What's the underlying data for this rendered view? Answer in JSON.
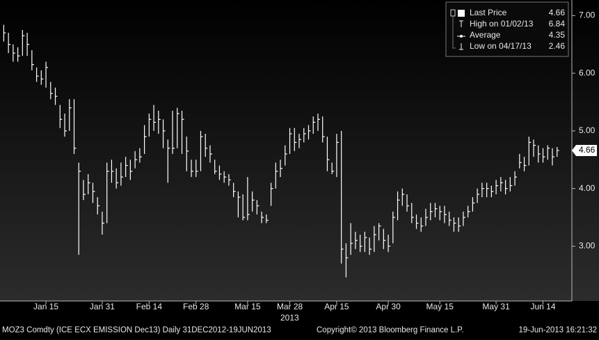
{
  "chart_data": {
    "type": "hlc",
    "footer_left": "MOZ3 Comdty (ICE ECX EMISSION  Dec13)  Daily 31DEC2012-19JUN2013",
    "footer_center": "Copyright© 2013 Bloomberg Finance L.P.",
    "footer_right": "19-Jun-2013 16:21:32",
    "x_year_label": "2013",
    "legend": [
      {
        "name": "Last Price",
        "value": 4.66
      },
      {
        "name": "High on 01/02/13",
        "value": 6.84
      },
      {
        "name": "Average",
        "value": 4.35
      },
      {
        "name": "Low on 04/17/13",
        "value": 2.46
      }
    ],
    "last_price": 4.66,
    "color": "#ffffff",
    "ylim": [
      2.05,
      7.27
    ],
    "yticks": [
      {
        "value": 3,
        "label": "3.00"
      },
      {
        "value": 4,
        "label": "4.00"
      },
      {
        "value": 5,
        "label": "5.00"
      },
      {
        "value": 6,
        "label": "6.00"
      },
      {
        "value": 7,
        "label": "7.00"
      }
    ],
    "categories": [
      null,
      null,
      null,
      null,
      null,
      null,
      null,
      null,
      null,
      "Jan 15",
      null,
      null,
      null,
      null,
      null,
      null,
      null,
      null,
      null,
      null,
      null,
      "Jan 31",
      null,
      null,
      null,
      null,
      null,
      null,
      null,
      null,
      null,
      "Feb 14",
      null,
      null,
      null,
      null,
      null,
      null,
      null,
      null,
      null,
      "Feb 28",
      null,
      null,
      null,
      null,
      null,
      null,
      null,
      null,
      null,
      null,
      "Mar 15",
      null,
      null,
      null,
      null,
      null,
      null,
      null,
      null,
      "Mar 28",
      null,
      null,
      null,
      null,
      null,
      null,
      null,
      null,
      null,
      "Apr 15",
      null,
      null,
      null,
      null,
      null,
      null,
      null,
      null,
      null,
      null,
      "Apr 30",
      null,
      null,
      null,
      null,
      null,
      null,
      null,
      null,
      null,
      null,
      "May 15",
      null,
      null,
      null,
      null,
      null,
      null,
      null,
      null,
      null,
      null,
      null,
      "May 31",
      null,
      null,
      null,
      null,
      null,
      null,
      null,
      null,
      null,
      "Jun 14",
      null,
      null,
      null
    ],
    "high": [
      6.84,
      6.7,
      6.5,
      6.45,
      6.75,
      6.7,
      6.4,
      6.1,
      6.05,
      6.2,
      5.85,
      5.75,
      5.45,
      5.3,
      5.55,
      5.55,
      4.45,
      4.15,
      4.25,
      4.1,
      3.85,
      3.6,
      4.45,
      4.5,
      4.35,
      4.45,
      4.55,
      4.5,
      4.65,
      4.7,
      5.1,
      5.3,
      5.45,
      5.35,
      5.2,
      4.85,
      5.35,
      5.4,
      5.35,
      4.9,
      4.5,
      4.5,
      5.0,
      4.95,
      4.75,
      4.5,
      4.4,
      4.3,
      4.25,
      4.1,
      3.95,
      3.9,
      4.2,
      3.95,
      3.8,
      3.6,
      3.55,
      4.1,
      4.45,
      4.5,
      4.75,
      5.05,
      5.05,
      4.95,
      5.05,
      5.1,
      5.25,
      5.3,
      5.25,
      4.9,
      4.45,
      4.95,
      5.0,
      3.05,
      3.4,
      3.25,
      3.2,
      3.25,
      3.15,
      3.35,
      3.4,
      3.3,
      3.2,
      3.6,
      3.95,
      4.0,
      3.9,
      3.75,
      3.55,
      3.5,
      3.65,
      3.75,
      3.75,
      3.7,
      3.7,
      3.6,
      3.5,
      3.5,
      3.6,
      3.7,
      3.85,
      4.0,
      4.1,
      4.1,
      4.05,
      4.15,
      4.2,
      4.15,
      4.2,
      4.3,
      4.6,
      4.55,
      4.9,
      4.85,
      4.75,
      4.7,
      4.75,
      4.7,
      4.72
    ],
    "low": [
      6.55,
      6.35,
      6.2,
      6.2,
      6.3,
      6.3,
      6.05,
      5.85,
      5.8,
      5.75,
      5.55,
      5.45,
      5.05,
      4.9,
      5.0,
      4.6,
      2.85,
      3.8,
      3.9,
      3.75,
      3.55,
      3.2,
      3.4,
      4.1,
      4.0,
      4.05,
      4.2,
      4.15,
      4.35,
      4.45,
      4.6,
      4.9,
      5.0,
      4.95,
      4.7,
      4.1,
      4.6,
      4.7,
      4.6,
      4.3,
      4.2,
      4.2,
      4.3,
      4.55,
      4.45,
      4.25,
      4.15,
      4.1,
      4.05,
      3.85,
      3.5,
      3.45,
      3.45,
      3.6,
      3.55,
      3.4,
      3.4,
      3.7,
      4.0,
      4.2,
      4.4,
      4.6,
      4.65,
      4.7,
      4.8,
      4.85,
      4.95,
      5.0,
      4.8,
      4.3,
      4.25,
      4.2,
      2.7,
      2.46,
      2.85,
      2.95,
      2.9,
      2.9,
      2.85,
      2.9,
      3.1,
      2.95,
      2.9,
      3.05,
      3.45,
      3.7,
      3.6,
      3.4,
      3.3,
      3.25,
      3.35,
      3.45,
      3.5,
      3.45,
      3.4,
      3.35,
      3.25,
      3.25,
      3.35,
      3.5,
      3.6,
      3.75,
      3.85,
      3.85,
      3.85,
      3.9,
      3.95,
      3.9,
      3.95,
      4.05,
      4.35,
      4.3,
      4.4,
      4.55,
      4.45,
      4.45,
      4.5,
      4.4,
      4.55
    ],
    "close": [
      6.7,
      6.5,
      6.35,
      6.3,
      6.65,
      6.5,
      6.15,
      5.95,
      5.9,
      6.1,
      5.65,
      5.6,
      5.2,
      5.0,
      5.4,
      4.7,
      4.3,
      3.9,
      4.1,
      3.95,
      3.7,
      3.4,
      4.3,
      4.3,
      4.1,
      4.2,
      4.4,
      4.3,
      4.5,
      4.55,
      4.9,
      5.2,
      5.15,
      5.2,
      5.0,
      4.7,
      4.7,
      5.3,
      5.2,
      4.65,
      4.3,
      4.3,
      4.9,
      4.7,
      4.6,
      4.3,
      4.25,
      4.2,
      4.15,
      3.95,
      3.85,
      3.5,
      3.55,
      3.8,
      3.7,
      3.5,
      3.45,
      4.0,
      4.3,
      4.35,
      4.6,
      4.95,
      4.8,
      4.85,
      4.95,
      5.0,
      5.15,
      5.2,
      4.9,
      4.5,
      4.3,
      4.8,
      2.95,
      2.8,
      3.05,
      3.1,
      3.0,
      3.15,
      2.95,
      3.2,
      3.35,
      3.1,
      3.0,
      3.5,
      3.8,
      3.9,
      3.7,
      3.5,
      3.4,
      3.35,
      3.5,
      3.6,
      3.65,
      3.6,
      3.55,
      3.45,
      3.4,
      3.35,
      3.5,
      3.6,
      3.75,
      3.9,
      4.0,
      4.0,
      3.95,
      4.05,
      4.1,
      4.0,
      4.05,
      4.2,
      4.45,
      4.4,
      4.8,
      4.75,
      4.6,
      4.55,
      4.7,
      4.55,
      4.66
    ]
  }
}
